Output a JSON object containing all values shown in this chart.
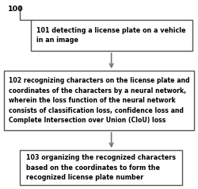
{
  "background_color": "#ffffff",
  "label_100": "100",
  "box1_text": "101 detecting a license plate on a vehicle\nin an image",
  "box2_text": "102 recognizing characters on the license plate and\ncoordinates of the characters by a neural network,\nwherein the loss function of the neural network\nconsists of classification loss, confidence loss and\nComplete Intersection over Union (CIoU) loss",
  "box3_text": "103 organizing the recognized characters\nbased on the coordinates to form the\nrecognized license plate number",
  "box_facecolor": "#ffffff",
  "box_edgecolor": "#555555",
  "text_color": "#000000",
  "arrow_color": "#777777",
  "font_size": 5.8,
  "font_weight": "bold",
  "fig_w": 2.5,
  "fig_h": 2.38,
  "dpi": 100
}
